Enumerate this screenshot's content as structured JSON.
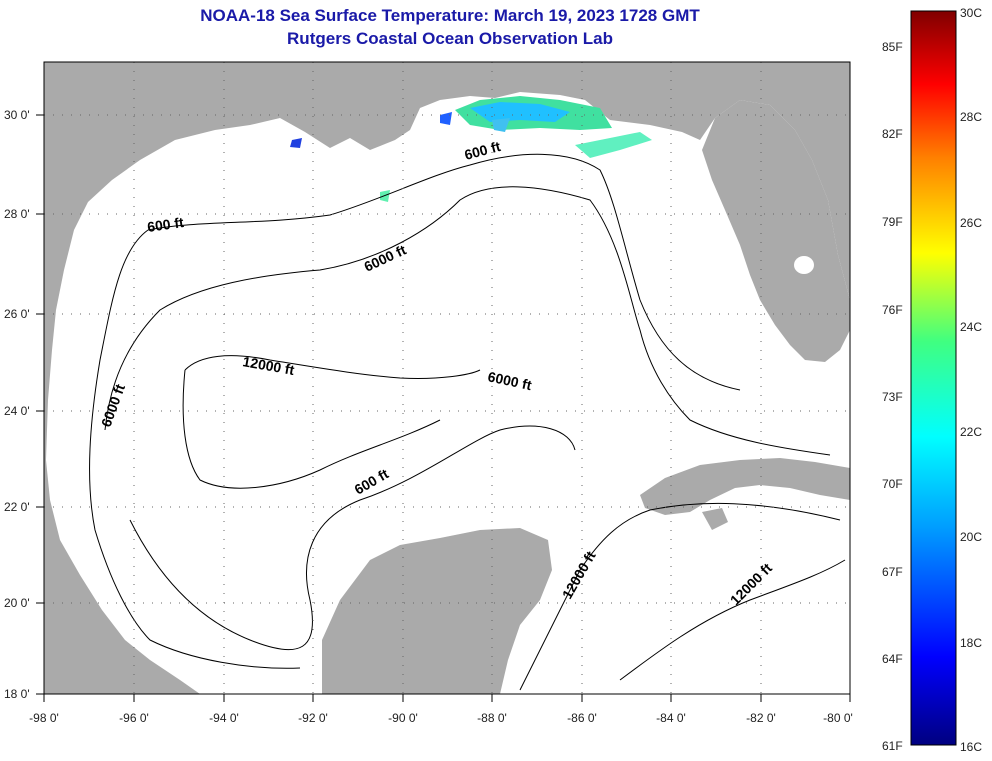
{
  "title": "NOAA-18 Sea Surface Temperature:  March 19, 2023 1728 GMT",
  "subtitle": "Rutgers Coastal Ocean Observation Lab",
  "map": {
    "lon_range": [
      -98,
      -80
    ],
    "lat_range": [
      18,
      31
    ],
    "lon_ticks": [
      "-98 0'",
      "-96 0'",
      "-94 0'",
      "-92 0'",
      "-90 0'",
      "-88 0'",
      "-86 0'",
      "-84 0'",
      "-82 0'",
      "-80 0'"
    ],
    "lat_ticks": [
      "18 0'",
      "20 0'",
      "22 0'",
      "24 0'",
      "26 0'",
      "28 0'",
      "30 0'"
    ],
    "land_color": "#aaaaaa",
    "water_color": "#ffffff",
    "grid": "dotted",
    "contour_labels": [
      "600 ft",
      "600 ft",
      "600 ft",
      "6000 ft",
      "6000 ft",
      "6000 ft",
      "12000 ft",
      "12000 ft",
      "12000 ft"
    ]
  },
  "colorbar": {
    "placement": "right",
    "fahrenheit": [
      "85F",
      "82F",
      "79F",
      "76F",
      "73F",
      "70F",
      "67F",
      "64F",
      "61F"
    ],
    "celsius": [
      "30C",
      "28C",
      "26C",
      "24C",
      "22C",
      "20C",
      "18C",
      "16C"
    ],
    "colors": [
      "#000080",
      "#0000ff",
      "#00a0ff",
      "#00ffff",
      "#40ff80",
      "#ffff00",
      "#ff8000",
      "#ff0000",
      "#800000"
    ]
  }
}
